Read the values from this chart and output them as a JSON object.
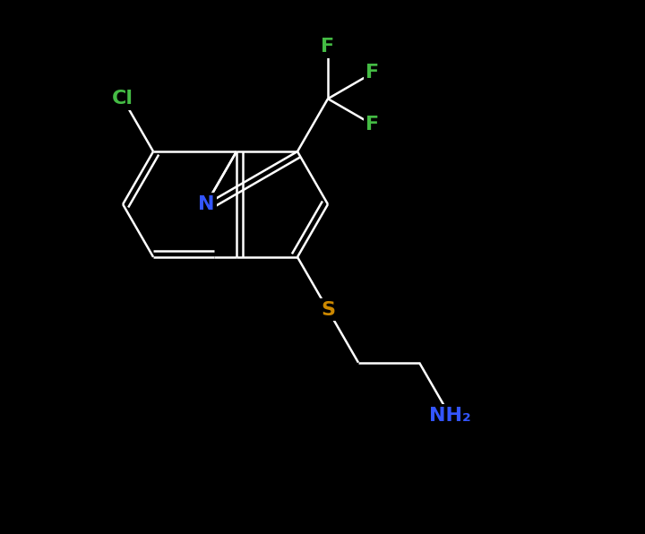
{
  "background_color": "#000000",
  "bond_color": "#ffffff",
  "bond_width": 1.8,
  "figsize": [
    7.2,
    5.96
  ],
  "dpi": 100,
  "colors": {
    "N": "#3355ff",
    "Cl": "#44bb44",
    "F": "#44bb44",
    "S": "#cc8800",
    "NH2": "#3355ff"
  },
  "fontsize": 16
}
